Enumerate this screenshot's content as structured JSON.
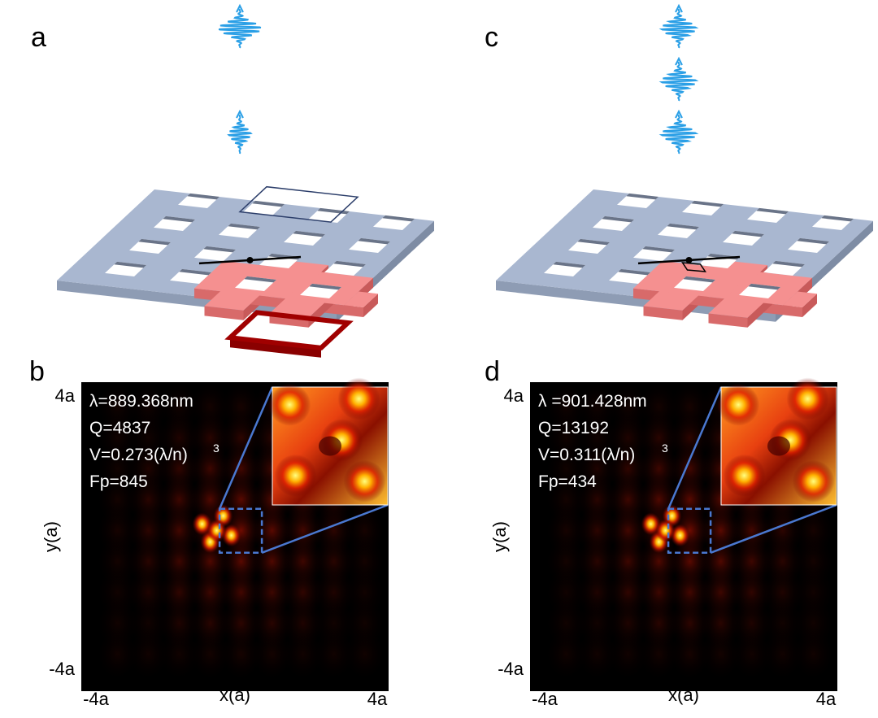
{
  "panels": {
    "a": {
      "label": "a"
    },
    "b": {
      "label": "b",
      "lines": [
        "λ=889.368nm",
        "Q=4837",
        "V=0.273(λ/n)",
        "Fp=845"
      ],
      "superscript": "3",
      "x_label": "x(a)",
      "x_ticks": [
        "-4a",
        "4a"
      ],
      "y_label": "y(a)",
      "y_ticks": [
        "4a",
        "-4a"
      ]
    },
    "c": {
      "label": "c"
    },
    "d": {
      "label": "d",
      "lines": [
        "λ =901.428nm",
        "Q=13192",
        "V=0.311(λ/n)",
        "Fp=434"
      ],
      "superscript": "3",
      "x_label": "x(a)",
      "x_ticks": [
        "-4a",
        "4a"
      ],
      "y_label": "y(a)",
      "y_ticks": [
        "4a",
        "-4a"
      ]
    }
  }
}
